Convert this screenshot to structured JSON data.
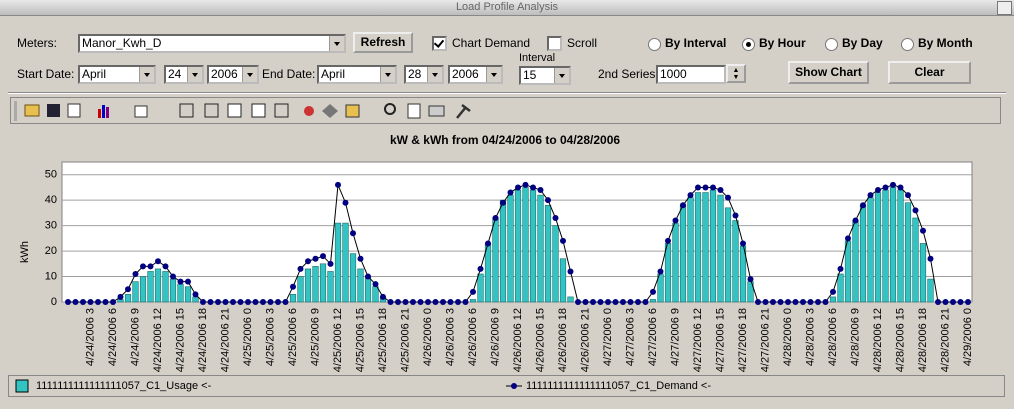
{
  "window": {
    "title": "Load Profile Analysis"
  },
  "form": {
    "meters_label": "Meters:",
    "meter": "Manor_Kwh_D",
    "refresh": "Refresh",
    "chart_demand": {
      "label": "Chart Demand",
      "checked": true
    },
    "scroll": {
      "label": "Scroll",
      "checked": false
    },
    "modes": [
      {
        "label": "By Interval",
        "selected": false
      },
      {
        "label": "By Hour",
        "selected": true
      },
      {
        "label": "By Day",
        "selected": false
      },
      {
        "label": "By Month",
        "selected": false
      }
    ],
    "start_label": "Start Date:",
    "start_month": "April",
    "start_day": "24",
    "start_year": "2006",
    "end_label": "End Date:",
    "end_month": "April",
    "end_day": "28",
    "end_year": "2006",
    "interval_label": "Interval",
    "interval": "15",
    "second_series_label": "2nd Series",
    "second_series": "1000",
    "show_chart": "Show Chart",
    "clear": "Clear"
  },
  "chart_data": {
    "type": "combo",
    "title": "kW  & kWh from 04/24/2006 to 04/28/2006",
    "y_label": "kWh",
    "categories": [
      null,
      null,
      null,
      "4/24/2006 3",
      null,
      null,
      "4/24/2006 6",
      null,
      null,
      "4/24/2006 9",
      null,
      null,
      "4/24/2006 12",
      null,
      null,
      "4/24/2006 15",
      null,
      null,
      "4/24/2006 18",
      null,
      null,
      "4/24/2006 21",
      null,
      null,
      "4/25/2006 0",
      null,
      null,
      "4/25/2006 3",
      null,
      null,
      "4/25/2006 6",
      null,
      null,
      "4/25/2006 9",
      null,
      null,
      "4/25/2006 12",
      null,
      null,
      "4/25/2006 15",
      null,
      null,
      "4/25/2006 18",
      null,
      null,
      "4/25/2006 21",
      null,
      null,
      "4/26/2006 0",
      null,
      null,
      "4/26/2006 3",
      null,
      null,
      "4/26/2006 6",
      null,
      null,
      "4/26/2006 9",
      null,
      null,
      "4/26/2006 12",
      null,
      null,
      "4/26/2006 15",
      null,
      null,
      "4/26/2006 18",
      null,
      null,
      "4/26/2006 21",
      null,
      null,
      "4/27/2006 0",
      null,
      null,
      "4/27/2006 3",
      null,
      null,
      "4/27/2006 6",
      null,
      null,
      "4/27/2006 9",
      null,
      null,
      "4/27/2006 12",
      null,
      null,
      "4/27/2006 15",
      null,
      null,
      "4/27/2006 18",
      null,
      null,
      "4/27/2006 21",
      null,
      null,
      "4/28/2006 0",
      null,
      null,
      "4/28/2006 3",
      null,
      null,
      "4/28/2006 6",
      null,
      null,
      "4/28/2006 9",
      null,
      null,
      "4/28/2006 12",
      null,
      null,
      "4/28/2006 15",
      null,
      null,
      "4/28/2006 18",
      null,
      null,
      "4/28/2006 21",
      null,
      null,
      "4/29/2006 0"
    ],
    "series": [
      {
        "name": "1111111111111111057_C1_Usage <-",
        "type": "bar",
        "color": "#33c3c3",
        "values": [
          0,
          0,
          0,
          0,
          0,
          0,
          0,
          1,
          3,
          8,
          10,
          12,
          13,
          12,
          9,
          7,
          6,
          2,
          0,
          0,
          0,
          0,
          0,
          0,
          0,
          0,
          0,
          0,
          0,
          0,
          3,
          10,
          13,
          14,
          15,
          12,
          31,
          31,
          19,
          13,
          10,
          6,
          2,
          0,
          0,
          0,
          0,
          0,
          0,
          0,
          0,
          0,
          0,
          0,
          1,
          11,
          23,
          33,
          40,
          42,
          44,
          45,
          44,
          42,
          38,
          30,
          17,
          2,
          0,
          0,
          0,
          0,
          0,
          0,
          0,
          0,
          0,
          0,
          1,
          11,
          23,
          31,
          38,
          41,
          43,
          43,
          44,
          42,
          37,
          32,
          22,
          8,
          0,
          0,
          0,
          0,
          0,
          0,
          0,
          0,
          0,
          0,
          2,
          11,
          24,
          32,
          38,
          41,
          43,
          44,
          45,
          44,
          39,
          33,
          23,
          9,
          0,
          0,
          0,
          0,
          0
        ]
      },
      {
        "name": "1111111111111111057_C1_Demand <-",
        "type": "line",
        "color": "#000080",
        "values": [
          0,
          0,
          0,
          0,
          0,
          0,
          0,
          2,
          5,
          11,
          14,
          14,
          16,
          14,
          10,
          8,
          8,
          3,
          0,
          0,
          0,
          0,
          0,
          0,
          0,
          0,
          0,
          0,
          0,
          0,
          6,
          13,
          16,
          17,
          18,
          15,
          46,
          39,
          27,
          17,
          10,
          7,
          2,
          0,
          0,
          0,
          0,
          0,
          0,
          0,
          0,
          0,
          0,
          0,
          4,
          13,
          23,
          33,
          39,
          43,
          45,
          46,
          45,
          44,
          40,
          33,
          24,
          12,
          0,
          0,
          0,
          0,
          0,
          0,
          0,
          0,
          0,
          0,
          4,
          12,
          24,
          32,
          38,
          42,
          45,
          45,
          45,
          44,
          41,
          34,
          23,
          9,
          0,
          0,
          0,
          0,
          0,
          0,
          0,
          0,
          0,
          0,
          4,
          13,
          25,
          32,
          38,
          42,
          44,
          45,
          46,
          45,
          42,
          36,
          28,
          17,
          0,
          0,
          0,
          0,
          0
        ]
      }
    ],
    "ylim": [
      0,
      55
    ],
    "yticks": [
      0,
      10,
      20,
      30,
      40,
      50
    ],
    "grid": true,
    "legend": "bottom"
  }
}
